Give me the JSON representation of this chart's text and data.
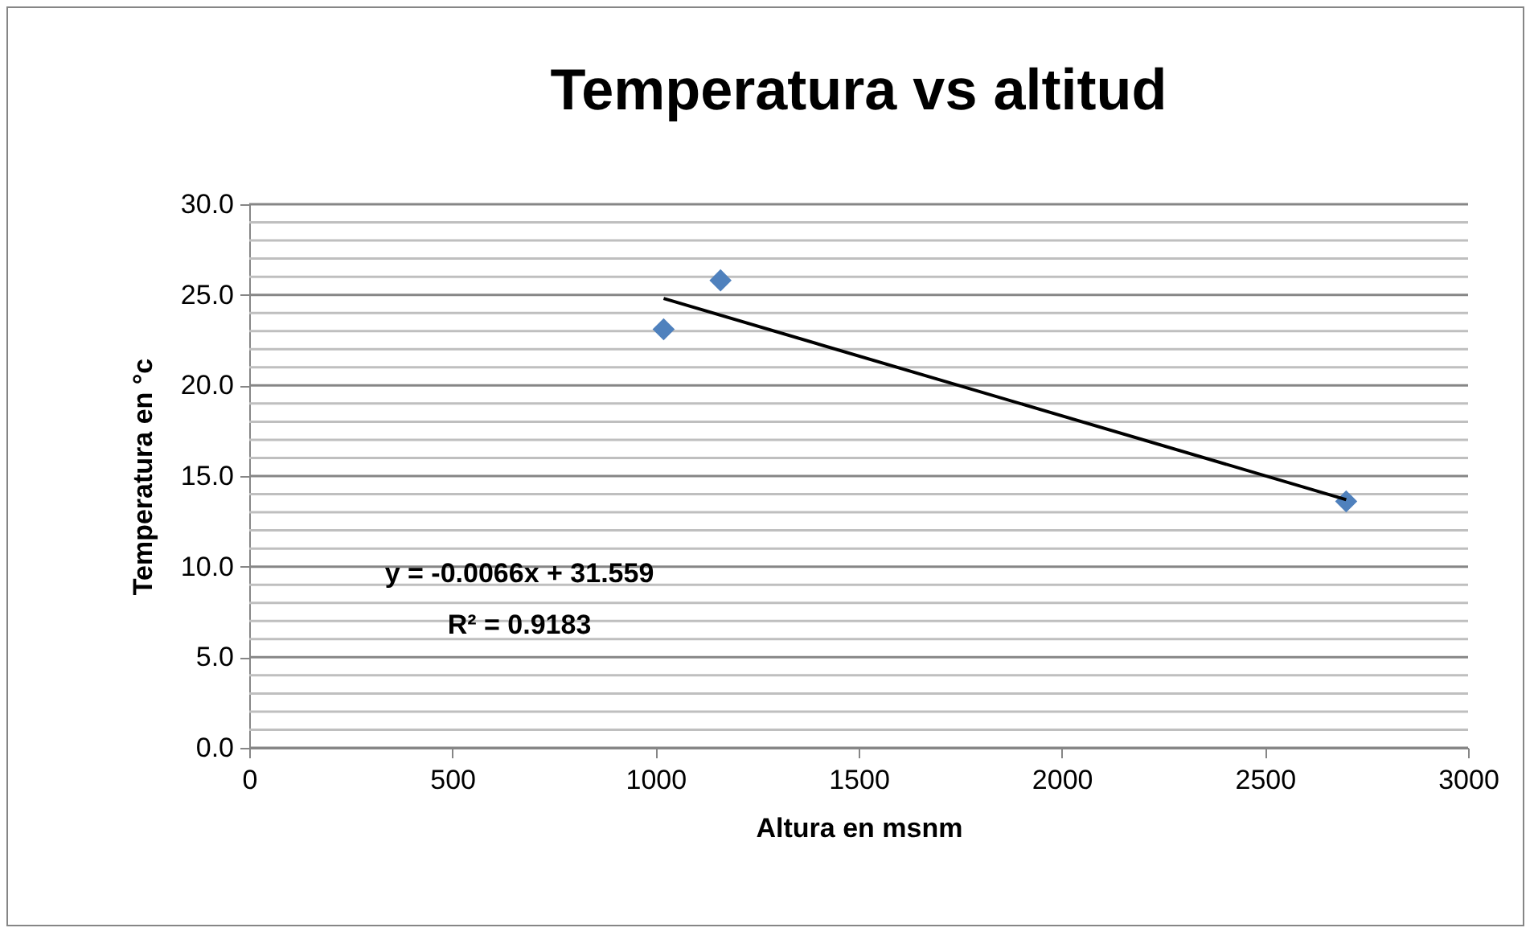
{
  "chart_data": {
    "type": "scatter",
    "title": "Temperatura vs altitud",
    "xlabel": "Altura en msnm",
    "ylabel": "Temperatura en °c",
    "annotations": [
      "y = -0.0066x + 31.559",
      "R² = 0.9183"
    ],
    "series": [
      {
        "color": "#4f81bd",
        "marker": "diamond",
        "x": [
          1020,
          1160,
          2700
        ],
        "values": [
          23.1,
          25.8,
          13.6
        ]
      },
      {
        "type": "line",
        "color": "#000000",
        "marker": "none",
        "x": [
          1020,
          2700
        ],
        "values": [
          24.8,
          13.7
        ]
      }
    ],
    "xlim": [
      0,
      3000
    ],
    "xticks": [
      0,
      500,
      1000,
      1500,
      2000,
      2500,
      3000
    ],
    "ylim": [
      0,
      30
    ],
    "yticks": [
      {
        "value": 0,
        "label": "0.0"
      },
      {
        "value": 1,
        "label": null
      },
      {
        "value": 2,
        "label": null
      },
      {
        "value": 3,
        "label": null
      },
      {
        "value": 4,
        "label": null
      },
      {
        "value": 5,
        "label": "5.0"
      },
      {
        "value": 6,
        "label": null
      },
      {
        "value": 7,
        "label": null
      },
      {
        "value": 8,
        "label": null
      },
      {
        "value": 9,
        "label": null
      },
      {
        "value": 10,
        "label": "10.0"
      },
      {
        "value": 11,
        "label": null
      },
      {
        "value": 12,
        "label": null
      },
      {
        "value": 13,
        "label": null
      },
      {
        "value": 14,
        "label": null
      },
      {
        "value": 15,
        "label": "15.0"
      },
      {
        "value": 16,
        "label": null
      },
      {
        "value": 17,
        "label": null
      },
      {
        "value": 18,
        "label": null
      },
      {
        "value": 19,
        "label": null
      },
      {
        "value": 20,
        "label": "20.0"
      },
      {
        "value": 21,
        "label": null
      },
      {
        "value": 22,
        "label": null
      },
      {
        "value": 23,
        "label": null
      },
      {
        "value": 24,
        "label": null
      },
      {
        "value": 25,
        "label": "25.0"
      },
      {
        "value": 26,
        "label": null
      },
      {
        "value": 27,
        "label": null
      },
      {
        "value": 28,
        "label": null
      },
      {
        "value": 29,
        "label": null
      },
      {
        "value": 30,
        "label": "30.0"
      }
    ],
    "grid": "y"
  }
}
